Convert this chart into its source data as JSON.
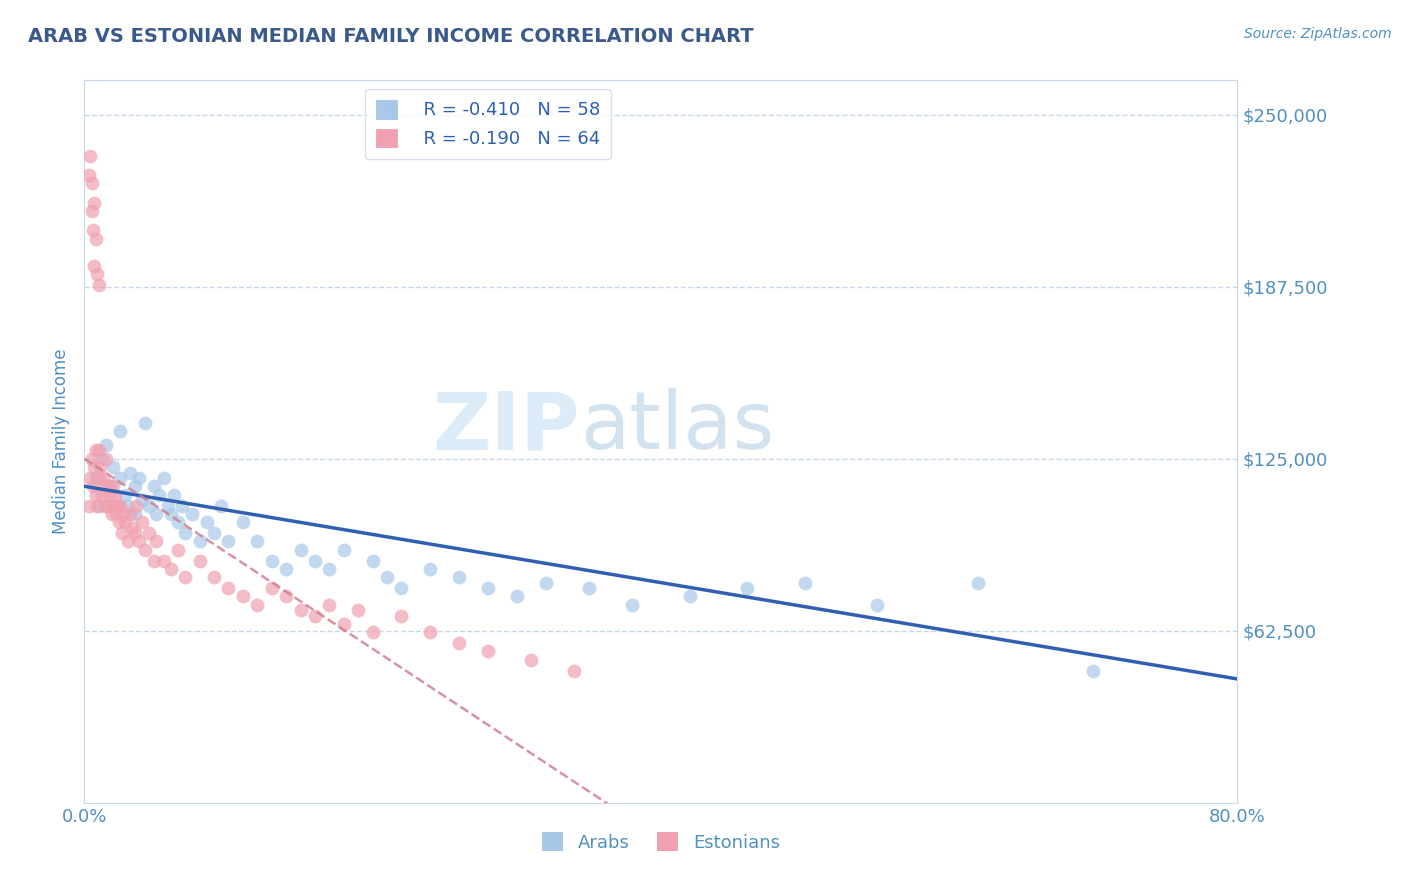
{
  "title": "ARAB VS ESTONIAN MEDIAN FAMILY INCOME CORRELATION CHART",
  "source_text": "Source: ZipAtlas.com",
  "ylabel": "Median Family Income",
  "xlim": [
    0.0,
    0.8
  ],
  "ylim": [
    0,
    262500
  ],
  "yticks": [
    62500,
    125000,
    187500,
    250000
  ],
  "ytick_labels": [
    "$62,500",
    "$125,000",
    "$187,500",
    "$250,000"
  ],
  "xticks": [
    0.0,
    0.1,
    0.2,
    0.3,
    0.4,
    0.5,
    0.6,
    0.7,
    0.8
  ],
  "xtick_labels": [
    "0.0%",
    "",
    "",
    "",
    "",
    "",
    "",
    "",
    "80.0%"
  ],
  "arab_color": "#a8c8e8",
  "estonian_color": "#f0a0b0",
  "arab_line_color": "#3060b0",
  "estonian_line_color": "#d08090",
  "legend_arab_R": "R = -0.410",
  "legend_arab_N": "N = 58",
  "legend_estonian_R": "R = -0.190",
  "legend_estonian_N": "N = 64",
  "watermark_zip": "ZIP",
  "watermark_atlas": "atlas",
  "title_color": "#3a5a8c",
  "tick_label_color": "#5090c0",
  "grid_color": "#c8d8e8",
  "background_color": "#ffffff",
  "arab_points_x": [
    0.008,
    0.01,
    0.012,
    0.015,
    0.018,
    0.02,
    0.022,
    0.025,
    0.025,
    0.028,
    0.03,
    0.032,
    0.035,
    0.035,
    0.038,
    0.04,
    0.042,
    0.045,
    0.048,
    0.05,
    0.052,
    0.055,
    0.058,
    0.06,
    0.062,
    0.065,
    0.068,
    0.07,
    0.075,
    0.08,
    0.085,
    0.09,
    0.095,
    0.1,
    0.11,
    0.12,
    0.13,
    0.14,
    0.15,
    0.16,
    0.17,
    0.18,
    0.2,
    0.21,
    0.22,
    0.24,
    0.26,
    0.28,
    0.3,
    0.32,
    0.35,
    0.38,
    0.42,
    0.46,
    0.5,
    0.55,
    0.62,
    0.7
  ],
  "arab_points_y": [
    118000,
    108000,
    125000,
    130000,
    115000,
    122000,
    108000,
    118000,
    135000,
    112000,
    108000,
    120000,
    115000,
    105000,
    118000,
    110000,
    138000,
    108000,
    115000,
    105000,
    112000,
    118000,
    108000,
    105000,
    112000,
    102000,
    108000,
    98000,
    105000,
    95000,
    102000,
    98000,
    108000,
    95000,
    102000,
    95000,
    88000,
    85000,
    92000,
    88000,
    85000,
    92000,
    88000,
    82000,
    78000,
    85000,
    82000,
    78000,
    75000,
    80000,
    78000,
    72000,
    75000,
    78000,
    80000,
    72000,
    80000,
    48000
  ],
  "estonian_points_x": [
    0.003,
    0.004,
    0.005,
    0.006,
    0.007,
    0.008,
    0.008,
    0.009,
    0.01,
    0.01,
    0.011,
    0.012,
    0.013,
    0.014,
    0.015,
    0.015,
    0.016,
    0.017,
    0.018,
    0.019,
    0.02,
    0.02,
    0.021,
    0.022,
    0.023,
    0.024,
    0.025,
    0.026,
    0.027,
    0.028,
    0.03,
    0.032,
    0.033,
    0.035,
    0.036,
    0.038,
    0.04,
    0.042,
    0.045,
    0.048,
    0.05,
    0.055,
    0.06,
    0.065,
    0.07,
    0.08,
    0.09,
    0.1,
    0.11,
    0.12,
    0.13,
    0.14,
    0.15,
    0.16,
    0.17,
    0.18,
    0.19,
    0.2,
    0.22,
    0.24,
    0.26,
    0.28,
    0.31,
    0.34
  ],
  "estonian_points_y": [
    108000,
    118000,
    125000,
    115000,
    122000,
    128000,
    112000,
    108000,
    118000,
    128000,
    122000,
    112000,
    118000,
    108000,
    115000,
    125000,
    108000,
    115000,
    112000,
    105000,
    115000,
    108000,
    112000,
    105000,
    108000,
    102000,
    108000,
    98000,
    105000,
    102000,
    95000,
    105000,
    100000,
    98000,
    108000,
    95000,
    102000,
    92000,
    98000,
    88000,
    95000,
    88000,
    85000,
    92000,
    82000,
    88000,
    82000,
    78000,
    75000,
    72000,
    78000,
    75000,
    70000,
    68000,
    72000,
    65000,
    70000,
    62000,
    68000,
    62000,
    58000,
    55000,
    52000,
    48000
  ],
  "estonian_high_x": [
    0.003,
    0.004,
    0.005,
    0.005,
    0.006,
    0.007,
    0.007,
    0.008,
    0.009,
    0.01
  ],
  "estonian_high_y": [
    228000,
    235000,
    215000,
    225000,
    208000,
    218000,
    195000,
    205000,
    192000,
    188000
  ]
}
